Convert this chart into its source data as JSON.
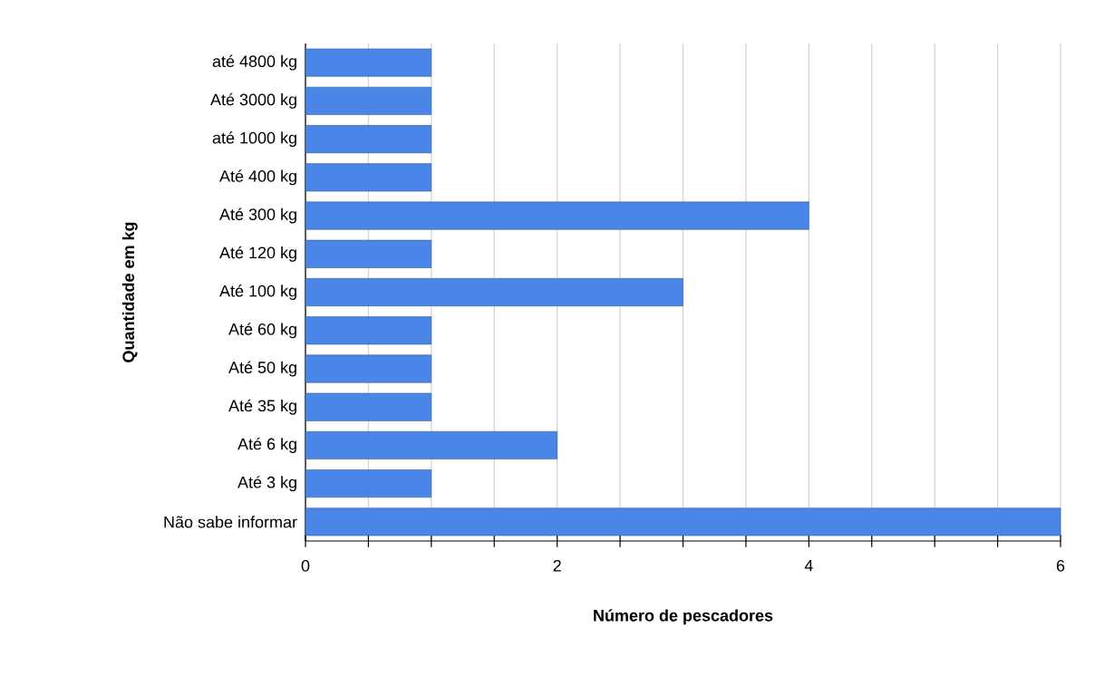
{
  "chart_data": {
    "type": "bar",
    "orientation": "horizontal",
    "categories": [
      "até 4800 kg",
      "Até 3000 kg",
      "até 1000 kg",
      "Até 400 kg",
      "Até 300 kg",
      "Até 120 kg",
      "Até 100 kg",
      "Até 60 kg",
      "Até 50 kg",
      "Até 35 kg",
      "Até 6 kg",
      "Até 3 kg",
      "Não sabe informar"
    ],
    "values": [
      1,
      1,
      1,
      1,
      4,
      1,
      3,
      1,
      1,
      1,
      2,
      1,
      6
    ],
    "color": "#4a86e8",
    "xlabel": "Número de pescadores",
    "ylabel": "Quantidade em kg",
    "xlim": [
      0,
      6
    ],
    "xticks": [
      0,
      {
        "value": 0.5,
        "label": null
      },
      {
        "value": 1,
        "label": null
      },
      {
        "value": 1.5,
        "label": null
      },
      2,
      {
        "value": 2.5,
        "label": null
      },
      {
        "value": 3,
        "label": null
      },
      {
        "value": 3.5,
        "label": null
      },
      4,
      {
        "value": 4.5,
        "label": null
      },
      {
        "value": 5,
        "label": null
      },
      {
        "value": 5.5,
        "label": null
      },
      6
    ],
    "grid": "x"
  }
}
